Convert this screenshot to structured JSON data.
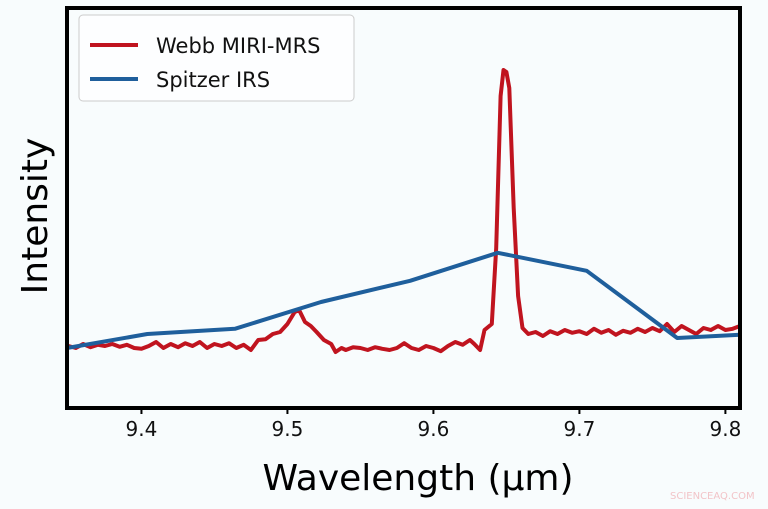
{
  "chart_data": {
    "type": "line",
    "title": "",
    "xlabel": "Wavelength (µm)",
    "ylabel": "Intensity",
    "xlim": [
      9.349,
      9.81
    ],
    "ylim": [
      0,
      1
    ],
    "xticks": [
      9.4,
      9.5,
      9.6,
      9.7,
      9.8
    ],
    "xtick_labels": [
      "9.4",
      "9.5",
      "9.6",
      "9.7",
      "9.8"
    ],
    "yticks": [],
    "grid": false,
    "legend_position": "top-left",
    "series": [
      {
        "name": "Webb MIRI-MRS",
        "color": "#c0141f",
        "x": [
          9.35,
          9.355,
          9.36,
          9.365,
          9.37,
          9.375,
          9.38,
          9.385,
          9.39,
          9.395,
          9.4,
          9.405,
          9.41,
          9.415,
          9.42,
          9.425,
          9.43,
          9.435,
          9.44,
          9.445,
          9.45,
          9.455,
          9.46,
          9.465,
          9.47,
          9.475,
          9.48,
          9.485,
          9.49,
          9.495,
          9.5,
          9.505,
          9.508,
          9.512,
          9.516,
          9.52,
          9.525,
          9.53,
          9.533,
          9.537,
          9.54,
          9.545,
          9.55,
          9.555,
          9.56,
          9.565,
          9.57,
          9.575,
          9.58,
          9.585,
          9.59,
          9.595,
          9.6,
          9.605,
          9.61,
          9.615,
          9.62,
          9.625,
          9.628,
          9.632,
          9.635,
          9.64,
          9.643,
          9.646,
          9.648,
          9.65,
          9.652,
          9.655,
          9.658,
          9.661,
          9.665,
          9.67,
          9.675,
          9.68,
          9.685,
          9.69,
          9.695,
          9.7,
          9.705,
          9.71,
          9.715,
          9.72,
          9.725,
          9.73,
          9.735,
          9.74,
          9.745,
          9.75,
          9.755,
          9.76,
          9.765,
          9.77,
          9.775,
          9.78,
          9.785,
          9.79,
          9.795,
          9.8,
          9.805,
          9.81
        ],
        "y": [
          0.155,
          0.15,
          0.16,
          0.152,
          0.158,
          0.155,
          0.16,
          0.153,
          0.158,
          0.15,
          0.148,
          0.155,
          0.165,
          0.15,
          0.16,
          0.152,
          0.162,
          0.155,
          0.165,
          0.15,
          0.16,
          0.155,
          0.162,
          0.15,
          0.158,
          0.145,
          0.17,
          0.172,
          0.185,
          0.19,
          0.21,
          0.24,
          0.245,
          0.215,
          0.205,
          0.19,
          0.17,
          0.16,
          0.14,
          0.15,
          0.145,
          0.152,
          0.15,
          0.145,
          0.152,
          0.148,
          0.145,
          0.15,
          0.162,
          0.15,
          0.145,
          0.155,
          0.15,
          0.142,
          0.155,
          0.165,
          0.158,
          0.17,
          0.16,
          0.145,
          0.195,
          0.21,
          0.4,
          0.78,
          0.845,
          0.84,
          0.8,
          0.5,
          0.28,
          0.2,
          0.185,
          0.19,
          0.18,
          0.192,
          0.185,
          0.195,
          0.188,
          0.192,
          0.185,
          0.198,
          0.188,
          0.195,
          0.183,
          0.193,
          0.188,
          0.198,
          0.19,
          0.2,
          0.192,
          0.21,
          0.19,
          0.205,
          0.195,
          0.185,
          0.2,
          0.195,
          0.205,
          0.195,
          0.198,
          0.205
        ]
      },
      {
        "name": "Spitzer IRS",
        "color": "#1f5f9c",
        "x": [
          9.349,
          9.404,
          9.464,
          9.523,
          9.584,
          9.644,
          9.705,
          9.767,
          9.81
        ],
        "y": [
          0.15,
          0.185,
          0.198,
          0.265,
          0.318,
          0.388,
          0.343,
          0.175,
          0.183
        ]
      }
    ]
  },
  "watermark": "SCIENCEAQ.COM"
}
